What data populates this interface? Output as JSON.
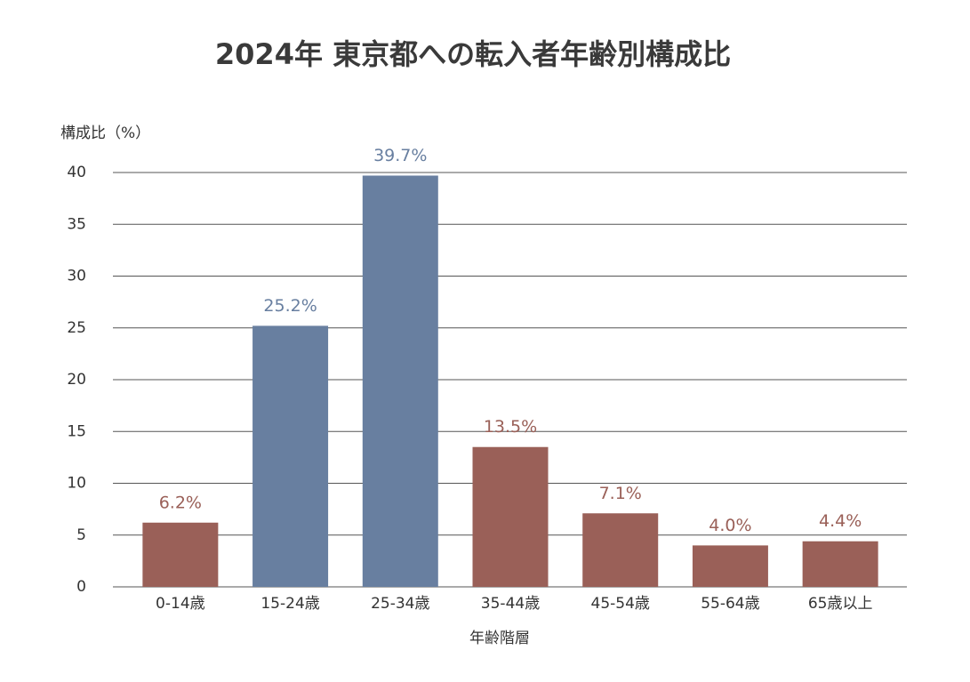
{
  "chart_data": {
    "type": "bar",
    "title": "2024年 東京都への転入者年齢別構成比",
    "y_label": "構成比（%）",
    "x_label": "年齢階層",
    "categories": [
      "0-14歳",
      "15-24歳",
      "25-34歳",
      "35-44歳",
      "45-54歳",
      "55-64歳",
      "65歳以上"
    ],
    "values": [
      6.2,
      25.2,
      39.7,
      13.5,
      7.1,
      4.0,
      4.4
    ],
    "value_labels": [
      "6.2%",
      "25.2%",
      "39.7%",
      "13.5%",
      "7.1%",
      "4.0%",
      "4.4%"
    ],
    "colors": [
      "#9a6058",
      "#687fa0",
      "#687fa0",
      "#9a6058",
      "#9a6058",
      "#9a6058",
      "#9a6058"
    ],
    "ylim": [
      0,
      40
    ],
    "yticks": [
      0,
      5,
      10,
      15,
      20,
      25,
      30,
      35,
      40
    ],
    "grid": true
  }
}
